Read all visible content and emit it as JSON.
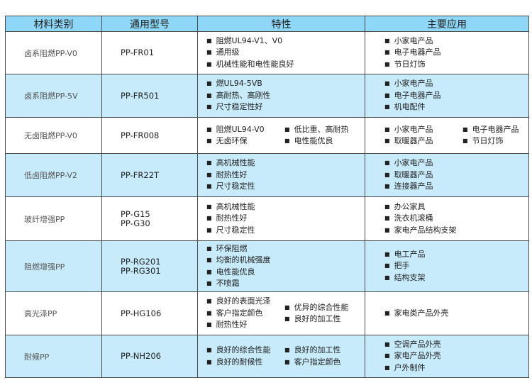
{
  "headers": [
    "材料类别",
    "通用型号",
    "特性",
    "主要应用"
  ],
  "rows": [
    {
      "category": "卤系阻燃PP-V0",
      "models": [
        "PP-FR01"
      ],
      "features": [
        [
          "阻燃UL94-V1、V0",
          "通用级",
          "机械性能和电性能良好"
        ]
      ],
      "applications": [
        [
          "小家电产品",
          "电子电器产品",
          "节日灯饰"
        ]
      ]
    },
    {
      "category": "卤系阻燃PP-5V",
      "models": [
        "PP-FR501"
      ],
      "features": [
        [
          "燃UL94-5VB",
          "高耐热、高刚性",
          "尺寸稳定性好"
        ]
      ],
      "applications": [
        [
          "小家电产品",
          "电子电器产品",
          "机电配件"
        ]
      ]
    },
    {
      "category": "无卤阻燃PP-V0",
      "models": [
        "PP-FR008"
      ],
      "features": [
        [
          "阻燃UL94-V0",
          "无卤环保"
        ],
        [
          "低比重、高耐热",
          "电性能优良"
        ]
      ],
      "applications": [
        [
          "小家电产品",
          "取暖器产品"
        ],
        [
          "电子电器产品",
          "节日灯饰"
        ]
      ]
    },
    {
      "category": "低卤阻燃PP-V2",
      "models": [
        "PP-FR22T"
      ],
      "features": [
        [
          "高机械性能",
          "耐热性好",
          "尺寸稳定性"
        ]
      ],
      "applications": [
        [
          "小家电产品",
          "取暖器产品",
          "连接器产品"
        ]
      ]
    },
    {
      "category": "玻纤增强PP",
      "models": [
        "PP-G15",
        "PP-G30"
      ],
      "features": [
        [
          "高机械性能",
          "耐热性好",
          "尺寸稳定性"
        ]
      ],
      "applications": [
        [
          "办公家具",
          "洗衣机滚桶",
          "家电产品结构支架"
        ]
      ]
    },
    {
      "category": "阻燃增强PP",
      "models": [
        "PP-RG201",
        "PP-RG301"
      ],
      "features": [
        [
          "环保阻燃",
          "均衡的机械强度",
          "电性能优良",
          "不喷霜"
        ]
      ],
      "applications": [
        [
          "电工产品",
          "把手",
          "结构支架"
        ]
      ]
    },
    {
      "category": "高光泽PP",
      "models": [
        "PP-HG106"
      ],
      "features": [
        [
          "良好的表面光泽",
          "客户指定颜色",
          "耐热性好"
        ],
        [
          "优异的综合性能",
          "良好的加工性"
        ]
      ],
      "applications": [
        [
          "家电类产品外壳"
        ]
      ]
    },
    {
      "category": "耐候PP",
      "models": [
        "PP-NH206"
      ],
      "features": [
        [
          "良好的综合性能",
          "良好的耐候性"
        ],
        [
          "良好的加工性",
          "客户指定颜色"
        ]
      ],
      "applications": [
        [
          "空调产品外壳",
          "家电产品外壳",
          "户外制件"
        ]
      ]
    }
  ],
  "colors": {
    "header": "#8fd7f7",
    "alt_row": "#c7ebfa",
    "border": "#4a4a4a"
  }
}
